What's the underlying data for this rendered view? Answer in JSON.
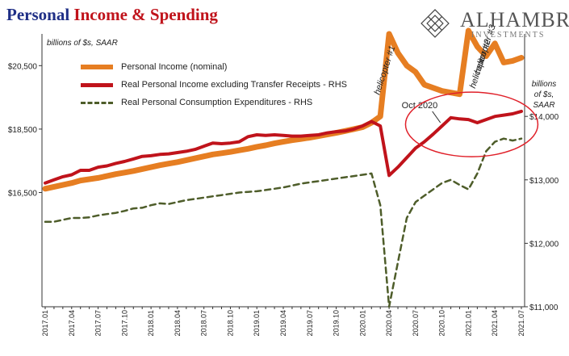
{
  "header": {
    "title_part1": "Personal ",
    "title_part2": "Income & Spending",
    "logo_name": "ALHAMBRA",
    "logo_sub": "INVESTMENTS",
    "units_left": "billions of $s, SAAR",
    "units_right_1": "billions",
    "units_right_2": "of $s,",
    "units_right_3": "SAAR"
  },
  "colors": {
    "income": "#e67e22",
    "real_income": "#c0131b",
    "pce": "#4e5d2a",
    "title_blue": "#1f2f86",
    "title_red": "#c0131b",
    "circle": "#e0212a"
  },
  "chart_data": {
    "type": "line",
    "x": [
      "2017.01",
      "2017.02",
      "2017.03",
      "2017.04",
      "2017.05",
      "2017.06",
      "2017.07",
      "2017.08",
      "2017.09",
      "2017.10",
      "2017.11",
      "2017.12",
      "2018.01",
      "2018.02",
      "2018.03",
      "2018.04",
      "2018.05",
      "2018.06",
      "2018.07",
      "2018.08",
      "2018.09",
      "2018.10",
      "2018.11",
      "2018.12",
      "2019.01",
      "2019.02",
      "2019.03",
      "2019.04",
      "2019.05",
      "2019.06",
      "2019.07",
      "2019.08",
      "2019.09",
      "2019.10",
      "2019.11",
      "2019.12",
      "2020.01",
      "2020.02",
      "2020.03",
      "2020.04",
      "2020.05",
      "2020.06",
      "2020.07",
      "2020.08",
      "2020.09",
      "2020.10",
      "2020.11",
      "2020.12",
      "2021.01",
      "2021.02",
      "2021.03",
      "2021.04",
      "2021.05",
      "2021.06",
      "2021.07"
    ],
    "x_tick_labels": [
      "2017.01",
      "2017.04",
      "2017.07",
      "2017.10",
      "2018.01",
      "2018.04",
      "2018.07",
      "2018.10",
      "2019.01",
      "2019.04",
      "2019.07",
      "2019.10",
      "2020.01",
      "2020.04",
      "2020.07",
      "2020.10",
      "2021.01",
      "2021.04",
      "2021.07"
    ],
    "left_axis": {
      "ticks": [
        "$16,500",
        "$18,500",
        "$20,500"
      ],
      "tick_values": [
        16500,
        18500,
        20500
      ],
      "ylim": [
        12900,
        21500
      ]
    },
    "right_axis": {
      "ticks": [
        "$11,000",
        "$12,000",
        "$13,000",
        "$14,000"
      ],
      "tick_values": [
        11000,
        12000,
        13000,
        14000
      ],
      "ylim": [
        11000,
        15300
      ]
    },
    "series": [
      {
        "name": "Personal Income (nominal)",
        "axis": "left",
        "values": [
          16620,
          16680,
          16740,
          16800,
          16880,
          16920,
          16960,
          17020,
          17080,
          17130,
          17180,
          17240,
          17300,
          17360,
          17410,
          17460,
          17520,
          17580,
          17640,
          17700,
          17740,
          17780,
          17830,
          17880,
          17940,
          17990,
          18050,
          18100,
          18150,
          18190,
          18230,
          18280,
          18330,
          18380,
          18440,
          18500,
          18560,
          18700,
          18900,
          21500,
          20900,
          20500,
          20300,
          19900,
          19800,
          19700,
          19650,
          19600,
          22000,
          21100,
          20800,
          21200,
          20600,
          20650,
          20750
        ]
      },
      {
        "name": "Real Personal Income excluding Transfer Receipts - RHS",
        "axis": "right",
        "values": [
          12950,
          13000,
          13050,
          13080,
          13150,
          13150,
          13200,
          13220,
          13260,
          13290,
          13330,
          13370,
          13380,
          13400,
          13410,
          13430,
          13450,
          13480,
          13530,
          13580,
          13570,
          13580,
          13600,
          13680,
          13710,
          13700,
          13710,
          13700,
          13690,
          13690,
          13700,
          13710,
          13740,
          13760,
          13770,
          13800,
          13850,
          13920,
          13850,
          13070,
          13200,
          13350,
          13500,
          13600,
          13720,
          13850,
          13980,
          13960,
          13950,
          13900,
          13950,
          14000,
          14020,
          14040,
          14080
        ]
      },
      {
        "name": "Real Personal Consumption Expenditures - RHS",
        "axis": "right",
        "values": [
          12340,
          12340,
          12370,
          12400,
          12400,
          12410,
          12440,
          12460,
          12480,
          12510,
          12550,
          12560,
          12600,
          12630,
          12620,
          12650,
          12680,
          12700,
          12720,
          12740,
          12760,
          12780,
          12800,
          12810,
          12820,
          12840,
          12860,
          12880,
          12910,
          12940,
          12960,
          12980,
          13000,
          13020,
          13040,
          13060,
          13080,
          13100,
          12600,
          11000,
          11700,
          12400,
          12650,
          12750,
          12850,
          12950,
          13000,
          12920,
          12850,
          13100,
          13450,
          13600,
          13650,
          13620,
          13650
        ]
      }
    ],
    "annotations": [
      {
        "text": "helicopter #1",
        "x": "2020.04"
      },
      {
        "text": "helicopter #2",
        "x": "2021.01"
      },
      {
        "text": "helicopter #3",
        "x": "2021.03"
      },
      {
        "text": "Oct 2020",
        "x": "2020.10"
      }
    ],
    "grid": false,
    "legend": "top-left"
  }
}
